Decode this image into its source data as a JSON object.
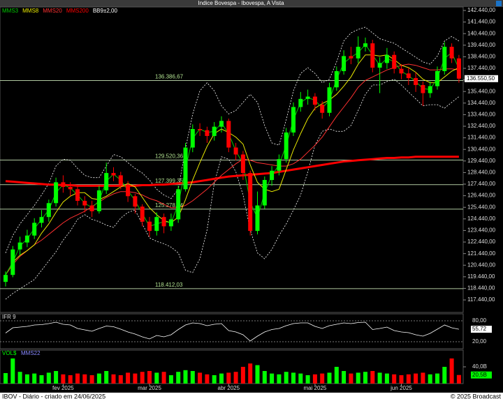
{
  "chart_data": {
    "type": "candlestick",
    "title": "Indice Bovespa - Ibovespa, A Vista",
    "categories": [
      null,
      null,
      null,
      null,
      null,
      null,
      null,
      null,
      "fev 2025",
      null,
      null,
      null,
      null,
      null,
      null,
      null,
      null,
      null,
      null,
      null,
      "mar 2025",
      null,
      null,
      null,
      null,
      null,
      null,
      null,
      null,
      null,
      null,
      "abr 2025",
      null,
      null,
      null,
      null,
      null,
      null,
      null,
      null,
      null,
      null,
      null,
      "mai 2025",
      null,
      null,
      null,
      null,
      null,
      null,
      null,
      null,
      null,
      null,
      null,
      "jun 2025",
      null,
      null,
      null,
      null,
      null,
      null,
      null,
      null
    ],
    "open": [
      119000,
      119600,
      121800,
      122400,
      123000,
      124100,
      124600,
      125800,
      127600,
      127200,
      127000,
      126000,
      125600,
      125100,
      126900,
      128400,
      128200,
      127400,
      126400,
      125500,
      124200,
      123400,
      124600,
      123800,
      124400,
      127000,
      130600,
      132200,
      132100,
      131600,
      132400,
      132900,
      130600,
      130000,
      128400,
      123400,
      125600,
      127800,
      128600,
      129600,
      131900,
      134100,
      134800,
      135000,
      134300,
      133600,
      135800,
      137200,
      138500,
      138300,
      139300,
      139600,
      137500,
      137900,
      138600,
      137400,
      137000,
      136600,
      136000,
      135300,
      135900,
      137200,
      139300,
      138300
    ],
    "high": [
      119900,
      122100,
      122900,
      123500,
      124500,
      125200,
      126100,
      128000,
      128200,
      127600,
      127300,
      126400,
      126000,
      127300,
      129300,
      128900,
      128500,
      127700,
      126600,
      125700,
      124600,
      125000,
      124900,
      124900,
      127300,
      131000,
      132600,
      132700,
      132400,
      132800,
      133300,
      133100,
      131000,
      130300,
      128600,
      126800,
      128100,
      129000,
      130000,
      132300,
      134500,
      135400,
      135600,
      135300,
      134600,
      136200,
      137600,
      139000,
      139300,
      140200,
      140100,
      139900,
      138400,
      139200,
      138900,
      137800,
      137500,
      137100,
      136300,
      136300,
      137600,
      139700,
      139600,
      138600
    ],
    "low": [
      118600,
      119400,
      121300,
      122000,
      122700,
      123700,
      124200,
      125500,
      126700,
      126400,
      125600,
      125000,
      124600,
      124900,
      126600,
      127700,
      127000,
      125900,
      124900,
      123800,
      122900,
      123000,
      123200,
      123400,
      124100,
      126800,
      130200,
      131600,
      131000,
      131200,
      131900,
      130200,
      129500,
      127800,
      123000,
      123100,
      125300,
      127300,
      128200,
      129300,
      131600,
      133700,
      134300,
      133800,
      133100,
      133300,
      135500,
      136900,
      137800,
      137900,
      138900,
      137100,
      135300,
      137400,
      137000,
      136500,
      136000,
      135400,
      134200,
      134900,
      135600,
      136900,
      137900,
      136200
    ],
    "close": [
      119600,
      121800,
      122400,
      123000,
      124100,
      124600,
      125800,
      127600,
      127200,
      127000,
      126000,
      125600,
      125100,
      126900,
      128400,
      128200,
      127400,
      126400,
      125500,
      124200,
      123400,
      124600,
      123800,
      124400,
      127000,
      130600,
      132200,
      132100,
      131600,
      132400,
      132900,
      130600,
      130000,
      128400,
      123400,
      125600,
      127800,
      128600,
      129600,
      131900,
      134100,
      134800,
      135000,
      134300,
      133600,
      135800,
      137200,
      138500,
      138300,
      139300,
      139600,
      137500,
      137900,
      138600,
      137400,
      137000,
      136600,
      136000,
      135300,
      135900,
      137200,
      139300,
      138300,
      136550.5
    ],
    "up_color": "#00ff00",
    "down_color": "#ff0000",
    "series": [
      {
        "name": "MMS3",
        "color": "#00c800",
        "width": 1,
        "values": [
          119600,
          120700,
          122100,
          122700,
          123600,
          124400,
          125200,
          126700,
          127400,
          127100,
          126500,
          125800,
          125400,
          126000,
          127700,
          128300,
          127800,
          126900,
          126000,
          124900,
          123800,
          124000,
          124200,
          124100,
          125700,
          128800,
          131400,
          132200,
          131900,
          132000,
          132700,
          131800,
          130300,
          129200,
          125900,
          124500,
          126700,
          128200,
          129100,
          130800,
          133000,
          134500,
          134900,
          134700,
          134000,
          134700,
          136500,
          137900,
          138400,
          138800,
          139500,
          138600,
          137700,
          138300,
          138000,
          137200,
          136800,
          136300,
          135700,
          135600,
          136600,
          138300,
          138800,
          137400
        ]
      },
      {
        "name": "MMS8",
        "color": "#e8e800",
        "width": 1,
        "values": [
          119600,
          120700,
          121300,
          121700,
          122200,
          123200,
          124000,
          125000,
          125900,
          126400,
          126700,
          126700,
          126200,
          126100,
          126400,
          126800,
          127200,
          127500,
          127200,
          126300,
          125400,
          124800,
          124300,
          124100,
          124600,
          126100,
          127800,
          129300,
          130700,
          131800,
          132200,
          131900,
          131500,
          130900,
          129100,
          127600,
          127000,
          126800,
          127000,
          128700,
          130400,
          131800,
          133100,
          134000,
          134400,
          134700,
          135200,
          135900,
          136700,
          137800,
          138600,
          138600,
          138500,
          138600,
          138200,
          137700,
          137500,
          137100,
          136500,
          136200,
          136200,
          136700,
          137200,
          137500
        ]
      },
      {
        "name": "MMS20",
        "color": "#ff3030",
        "width": 1,
        "values": [
          119600,
          120500,
          121200,
          121700,
          122200,
          122600,
          123100,
          123600,
          124100,
          124500,
          124800,
          125100,
          125500,
          125900,
          126300,
          126600,
          126800,
          126800,
          126700,
          126500,
          126200,
          126000,
          125700,
          125400,
          125400,
          125600,
          126000,
          126500,
          127000,
          127600,
          128200,
          128700,
          129200,
          129600,
          129500,
          129300,
          129200,
          129100,
          129000,
          129000,
          129200,
          129600,
          130200,
          130800,
          131500,
          132400,
          133300,
          134100,
          134900,
          135800,
          136400,
          136700,
          137000,
          137300,
          137500,
          137700,
          137800,
          137700,
          137500,
          137300,
          137300,
          137400,
          137400,
          137300
        ]
      },
      {
        "name": "MMS200",
        "color": "#ff0000",
        "width": 3,
        "values": [
          127700,
          127650,
          127600,
          127550,
          127500,
          127450,
          127400,
          127400,
          127350,
          127350,
          127300,
          127300,
          127300,
          127300,
          127300,
          127300,
          127300,
          127300,
          127300,
          127350,
          127350,
          127400,
          127400,
          127450,
          127500,
          127550,
          127600,
          127700,
          127800,
          127900,
          128000,
          128100,
          128150,
          128200,
          128250,
          128300,
          128350,
          128400,
          128500,
          128600,
          128700,
          128800,
          128900,
          129000,
          129100,
          129200,
          129300,
          129400,
          129450,
          129500,
          129550,
          129600,
          129650,
          129700,
          129700,
          129750,
          129750,
          129800,
          129800,
          129800,
          129800,
          129800,
          129800,
          129800
        ]
      }
    ],
    "bands": {
      "name": "BB9±2,00",
      "color": "#ffffff",
      "upper": [
        121500,
        123000,
        124000,
        124800,
        125600,
        126500,
        127500,
        129000,
        129600,
        129500,
        128800,
        128200,
        128000,
        128000,
        129000,
        130000,
        129800,
        129300,
        128800,
        128400,
        127800,
        127000,
        126500,
        126200,
        127000,
        130500,
        133500,
        135500,
        136200,
        135500,
        134200,
        133500,
        133800,
        134500,
        135200,
        134500,
        132500,
        131000,
        130800,
        133000,
        135500,
        137000,
        137500,
        137000,
        136200,
        136500,
        138000,
        139800,
        140500,
        140800,
        141000,
        140500,
        140000,
        139800,
        139600,
        139200,
        138800,
        138400,
        138000,
        137800,
        138500,
        139800,
        140200,
        139800
      ],
      "lower": [
        117500,
        118000,
        118400,
        118800,
        119200,
        120000,
        120800,
        121600,
        122600,
        123400,
        124400,
        124800,
        124400,
        124200,
        123900,
        123700,
        124500,
        125000,
        125200,
        124000,
        122800,
        122500,
        122300,
        122000,
        121500,
        120000,
        119800,
        121000,
        123500,
        127500,
        129800,
        129600,
        128500,
        126500,
        123500,
        121500,
        121000,
        121800,
        123000,
        124000,
        125200,
        126500,
        128500,
        130800,
        132000,
        132200,
        132000,
        132000,
        132500,
        133800,
        135200,
        136000,
        136000,
        136300,
        136500,
        136000,
        135400,
        134800,
        134200,
        134300,
        134300,
        134000,
        134500,
        135000
      ]
    },
    "ylim": [
      116360,
      142740
    ],
    "yticks": [
      {
        "value": 142440,
        "label": "142.440,00"
      },
      {
        "value": 141440,
        "label": "141.440,00"
      },
      {
        "value": 140440,
        "label": "140.440,00"
      },
      {
        "value": 139440,
        "label": "139.440,00"
      },
      {
        "value": 138440,
        "label": "138.440,00"
      },
      {
        "value": 137440,
        "label": "137.440,00"
      },
      {
        "value": 136440,
        "label": "136.440,00"
      },
      {
        "value": 135440,
        "label": "135.440,00"
      },
      {
        "value": 134440,
        "label": "134.440,00"
      },
      {
        "value": 133440,
        "label": "133.440,00"
      },
      {
        "value": 132440,
        "label": "132.440,00"
      },
      {
        "value": 131440,
        "label": "131.440,00"
      },
      {
        "value": 130440,
        "label": "130.440,00"
      },
      {
        "value": 129440,
        "label": "129.440,00"
      },
      {
        "value": 128440,
        "label": "128.440,00"
      },
      {
        "value": 127440,
        "label": "127.440,00"
      },
      {
        "value": 126440,
        "label": "126.440,00"
      },
      {
        "value": 125440,
        "label": "125.440,00"
      },
      {
        "value": 124440,
        "label": "124.440,00"
      },
      {
        "value": 123440,
        "label": "123.440,00"
      },
      {
        "value": 122440,
        "label": "122.440,00"
      },
      {
        "value": 121440,
        "label": "121.440,00"
      },
      {
        "value": 120440,
        "label": "120.440,00"
      },
      {
        "value": 119440,
        "label": "119.440,00"
      },
      {
        "value": 118440,
        "label": "118.440,00"
      },
      {
        "value": 117440,
        "label": "117.440,00"
      }
    ],
    "levels": [
      {
        "value": 136386.67,
        "label": "136.386,67"
      },
      {
        "value": 129520.36,
        "label": "129.520,36"
      },
      {
        "value": 127399.35,
        "label": "127.399,35"
      },
      {
        "value": 125278.34,
        "label": "125.278,34"
      },
      {
        "value": 118412.03,
        "label": "118.412,03"
      }
    ],
    "last_price": {
      "value": 136550.5,
      "label": "136.550,50"
    },
    "rsi": {
      "title": "IFR 9",
      "color": "#ffffff",
      "ylim": [
        0,
        100
      ],
      "yticks": [
        {
          "value": 80,
          "label": "80,00"
        },
        {
          "value": 20,
          "label": "20,00"
        }
      ],
      "values": [
        45,
        60,
        62,
        64,
        68,
        69,
        72,
        76,
        70,
        68,
        58,
        54,
        50,
        58,
        65,
        63,
        56,
        48,
        42,
        34,
        28,
        38,
        34,
        40,
        55,
        68,
        74,
        72,
        66,
        70,
        72,
        52,
        48,
        40,
        22,
        36,
        48,
        55,
        58,
        66,
        72,
        74,
        74,
        64,
        58,
        66,
        70,
        74,
        72,
        75,
        76,
        55,
        58,
        62,
        52,
        48,
        46,
        40,
        36,
        44,
        56,
        68,
        60,
        55.72
      ],
      "last": {
        "value": 55.72,
        "label": "55,72"
      }
    },
    "volume": {
      "title": "VOL$",
      "ma_name": "MMS22",
      "ylim": [
        0,
        80
      ],
      "yticks": [
        {
          "value": 40,
          "label": "40,0B"
        }
      ],
      "values": [
        25,
        60,
        28,
        22,
        24,
        20,
        26,
        30,
        22,
        20,
        24,
        22,
        20,
        24,
        30,
        22,
        20,
        26,
        24,
        28,
        30,
        26,
        28,
        20,
        28,
        32,
        30,
        26,
        22,
        20,
        24,
        26,
        28,
        40,
        48,
        44,
        30,
        24,
        22,
        28,
        26,
        24,
        20,
        22,
        24,
        26,
        40,
        30,
        24,
        26,
        28,
        30,
        26,
        24,
        22,
        20,
        22,
        24,
        26,
        22,
        24,
        40,
        60,
        20.5
      ],
      "last": {
        "value": 20.5,
        "label": "20,5B"
      }
    }
  },
  "footer": {
    "left": "IBOV - Diário - criado em 24/06/2025",
    "right": "© 2025 Broadcast"
  }
}
